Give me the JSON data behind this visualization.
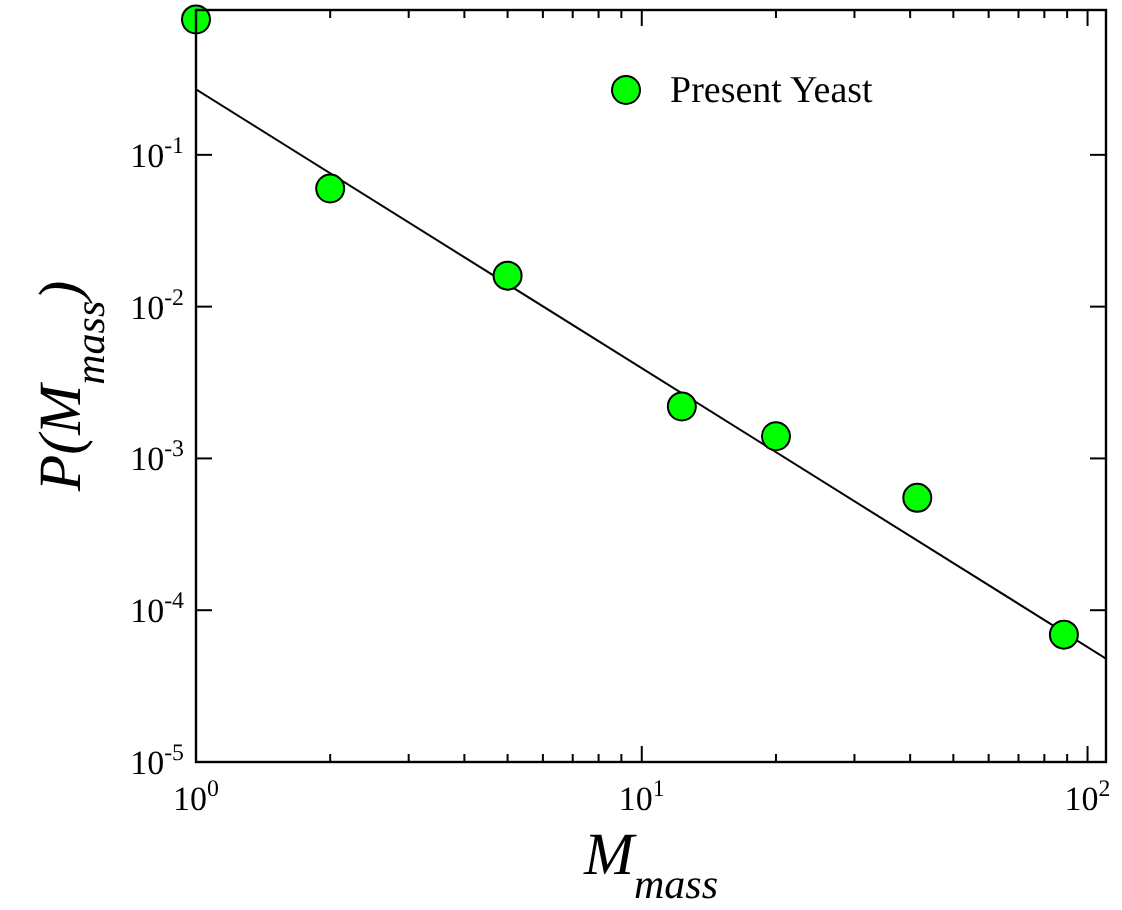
{
  "chart_data": {
    "type": "scatter",
    "xlabel": "M$_{mass}$",
    "ylabel": "P(M$_{mass}$)",
    "log": "xy",
    "legend": "top right",
    "marker": "circle",
    "grid": false,
    "xlim": [
      1,
      110
    ],
    "ylim": [
      1e-05,
      0.9
    ],
    "xticks": [
      {
        "value": 1,
        "label": "10$^{0}$"
      },
      {
        "value": 2,
        "label": null
      },
      {
        "value": 3,
        "label": null
      },
      {
        "value": 4,
        "label": null
      },
      {
        "value": 5,
        "label": null
      },
      {
        "value": 6,
        "label": null
      },
      {
        "value": 7,
        "label": null
      },
      {
        "value": 8,
        "label": null
      },
      {
        "value": 9,
        "label": null
      },
      {
        "value": 10,
        "label": "10$^{1}$"
      },
      {
        "value": 20,
        "label": null
      },
      {
        "value": 30,
        "label": null
      },
      {
        "value": 40,
        "label": null
      },
      {
        "value": 50,
        "label": null
      },
      {
        "value": 60,
        "label": null
      },
      {
        "value": 70,
        "label": null
      },
      {
        "value": 80,
        "label": null
      },
      {
        "value": 90,
        "label": null
      },
      {
        "value": 100,
        "label": "10$^{2}$"
      }
    ],
    "yticks": [
      {
        "value": 1e-05,
        "label": "10$^{-5}$"
      },
      {
        "value": 0.0001,
        "label": "10$^{-4}$"
      },
      {
        "value": 0.001,
        "label": "10$^{-3}$"
      },
      {
        "value": 0.01,
        "label": "10$^{-2}$"
      },
      {
        "value": 0.1,
        "label": "10$^{-1}$"
      }
    ],
    "series": [
      {
        "name": "Present Yeast",
        "color": "#00ff00",
        "x": [
          1,
          2,
          5,
          12.3,
          20,
          41.5,
          88.5
        ],
        "values": [
          0.78,
          0.06,
          0.016,
          0.0022,
          0.0014,
          0.00055,
          6.9e-05
        ]
      },
      {
        "type": "line",
        "color": "#000000",
        "line_style": "solid",
        "marker": "none",
        "x": [
          1,
          110
        ],
        "values": [
          0.27,
          4.8e-05
        ]
      }
    ]
  }
}
